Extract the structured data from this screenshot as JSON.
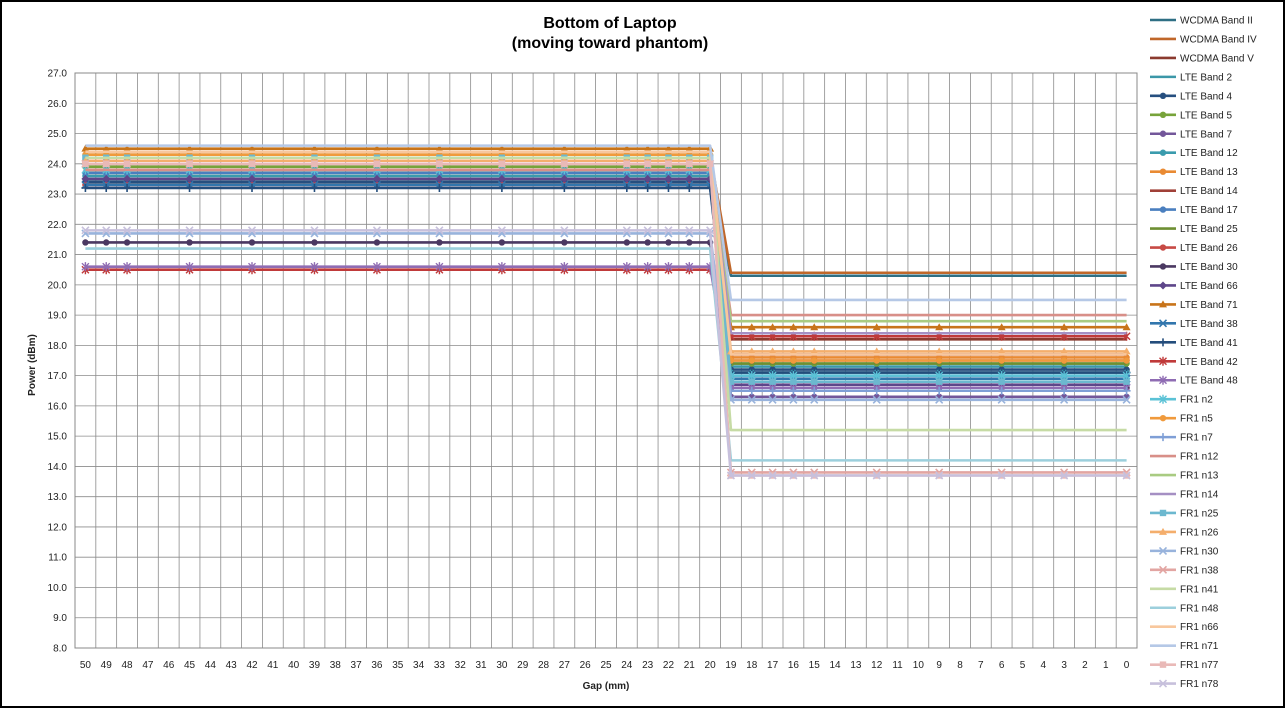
{
  "chart_data": {
    "type": "line",
    "title": "Bottom of Laptop",
    "subtitle": "(moving toward phantom)",
    "xlabel": "Gap (mm)",
    "ylabel": "Power (dBm)",
    "ylim": [
      8.0,
      27.0
    ],
    "ytick_step": 1.0,
    "grid": true,
    "legend_position": "right",
    "categories": [
      "50",
      "49",
      "48",
      "47",
      "46",
      "45",
      "44",
      "43",
      "42",
      "41",
      "40",
      "39",
      "38",
      "37",
      "36",
      "35",
      "34",
      "33",
      "32",
      "31",
      "30",
      "29",
      "28",
      "27",
      "26",
      "25",
      "24",
      "23",
      "22",
      "21",
      "20",
      "19",
      "18",
      "17",
      "16",
      "15",
      "14",
      "13",
      "12",
      "11",
      "10",
      "9",
      "8",
      "7",
      "6",
      "5",
      "4",
      "3",
      "2",
      "1",
      "0"
    ],
    "marker_categories": [
      "50",
      "49",
      "48",
      "45",
      "42",
      "39",
      "36",
      "33",
      "30",
      "27",
      "24",
      "23",
      "22",
      "21",
      "20",
      "19",
      "18",
      "17",
      "16",
      "15",
      "12",
      "9",
      "6",
      "3",
      "0"
    ],
    "series": [
      {
        "name": "WCDMA Band II",
        "color": "#2e6f84",
        "marker": "none",
        "far": 23.5,
        "near": 20.3
      },
      {
        "name": "WCDMA Band IV",
        "color": "#c0672a",
        "marker": "none",
        "far": 24.3,
        "near": 20.4
      },
      {
        "name": "WCDMA Band V",
        "color": "#8b3a2f",
        "marker": "none",
        "far": 23.4,
        "near": 18.2
      },
      {
        "name": "LTE Band 2",
        "color": "#3b97a8",
        "marker": "none",
        "far": 23.4,
        "near": 17.3
      },
      {
        "name": "LTE Band 4",
        "color": "#264f7f",
        "marker": "circle",
        "far": 23.4,
        "near": 17.2
      },
      {
        "name": "LTE Band 5",
        "color": "#77a33a",
        "marker": "circle",
        "far": 23.9,
        "near": 17.4
      },
      {
        "name": "LTE Band 7",
        "color": "#73579a",
        "marker": "circle",
        "far": 24.1,
        "near": 16.3
      },
      {
        "name": "LTE Band 12",
        "color": "#3a9bad",
        "marker": "circle",
        "far": 23.6,
        "near": 17.1
      },
      {
        "name": "LTE Band 13",
        "color": "#e98a33",
        "marker": "circle",
        "far": 24.0,
        "near": 17.6
      },
      {
        "name": "LTE Band 14",
        "color": "#a04038",
        "marker": "none",
        "far": 23.7,
        "near": 17.7
      },
      {
        "name": "LTE Band 17",
        "color": "#4a7fbf",
        "marker": "circle",
        "far": 23.7,
        "near": 17.0
      },
      {
        "name": "LTE Band 25",
        "color": "#6e8f33",
        "marker": "none",
        "far": 23.8,
        "near": 17.4
      },
      {
        "name": "LTE Band 26",
        "color": "#c74a45",
        "marker": "circle",
        "far": 23.3,
        "near": 17.5
      },
      {
        "name": "LTE Band 30",
        "color": "#4b3962",
        "marker": "circle",
        "far": 21.4,
        "near": 16.6
      },
      {
        "name": "LTE Band 66",
        "color": "#5e468a",
        "marker": "diamond",
        "far": 23.5,
        "near": 16.7
      },
      {
        "name": "LTE Band 71",
        "color": "#c8741a",
        "marker": "triangle",
        "far": 24.5,
        "near": 18.6
      },
      {
        "name": "LTE Band 38",
        "color": "#3276ad",
        "marker": "x",
        "far": 23.3,
        "near": 16.9
      },
      {
        "name": "LTE Band 41",
        "color": "#244d7c",
        "marker": "plus",
        "far": 23.2,
        "near": 17.1
      },
      {
        "name": "LTE Band 42",
        "color": "#c03a3a",
        "marker": "star",
        "far": 20.5,
        "near": 18.3
      },
      {
        "name": "LTE Band 48",
        "color": "#8f6cb3",
        "marker": "star",
        "far": 20.6,
        "near": 16.6
      },
      {
        "name": "FR1 n2",
        "color": "#5bc2d6",
        "marker": "star",
        "far": 23.8,
        "near": 17.0
      },
      {
        "name": "FR1 n5",
        "color": "#f09a3c",
        "marker": "circle",
        "far": 24.3,
        "near": 17.5
      },
      {
        "name": "FR1 n7",
        "color": "#7f9fd6",
        "marker": "plus",
        "far": 24.0,
        "near": 16.5
      },
      {
        "name": "FR1 n12",
        "color": "#d88f88",
        "marker": "none",
        "far": 23.8,
        "near": 19.0
      },
      {
        "name": "FR1 n13",
        "color": "#a9cb82",
        "marker": "none",
        "far": 24.0,
        "near": 18.8
      },
      {
        "name": "FR1 n14",
        "color": "#a58fc3",
        "marker": "none",
        "far": 24.1,
        "near": 18.4
      },
      {
        "name": "FR1 n25",
        "color": "#6cb8cf",
        "marker": "square",
        "far": 24.2,
        "near": 16.8
      },
      {
        "name": "FR1 n26",
        "color": "#f4ae6c",
        "marker": "triangle",
        "far": 24.1,
        "near": 17.8
      },
      {
        "name": "FR1 n30",
        "color": "#98b3dc",
        "marker": "x",
        "far": 21.7,
        "near": 16.2
      },
      {
        "name": "FR1 n38",
        "color": "#e2a5a2",
        "marker": "x",
        "far": 24.0,
        "near": 13.8
      },
      {
        "name": "FR1 n41",
        "color": "#c6dba5",
        "marker": "none",
        "far": 24.2,
        "near": 15.2
      },
      {
        "name": "FR1 n48",
        "color": "#9ccfdc",
        "marker": "none",
        "far": 21.2,
        "near": 14.2
      },
      {
        "name": "FR1 n66",
        "color": "#f8c79d",
        "marker": "none",
        "far": 24.4,
        "near": 17.7
      },
      {
        "name": "FR1 n71",
        "color": "#b5c8e6",
        "marker": "none",
        "far": 24.6,
        "near": 19.5
      },
      {
        "name": "FR1 n77",
        "color": "#e9b9b7",
        "marker": "square",
        "far": 24.0,
        "near": 13.7
      },
      {
        "name": "FR1 n78",
        "color": "#c7c0dc",
        "marker": "x",
        "far": 21.8,
        "near": 13.7
      }
    ]
  }
}
